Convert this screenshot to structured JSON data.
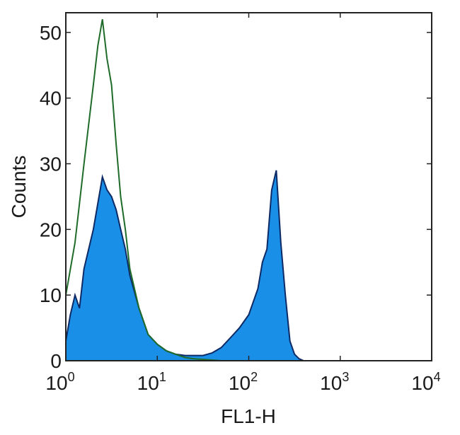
{
  "chart_data": {
    "type": "area",
    "title": "",
    "xlabel": "FL1-H",
    "ylabel": "Counts",
    "xscale": "log",
    "xlim": [
      1,
      10000
    ],
    "ylim": [
      0,
      53
    ],
    "grid": false,
    "x_ticks": [
      {
        "base": "10",
        "exp": "0"
      },
      {
        "base": "10",
        "exp": "1"
      },
      {
        "base": "10",
        "exp": "2"
      },
      {
        "base": "10",
        "exp": "3"
      },
      {
        "base": "10",
        "exp": "4"
      }
    ],
    "x_tick_values": [
      1,
      10,
      100,
      1000,
      10000
    ],
    "y_ticks": [
      "0",
      "10",
      "20",
      "30",
      "40",
      "50"
    ],
    "y_tick_values": [
      0,
      10,
      20,
      30,
      40,
      50
    ],
    "series": [
      {
        "style": "filled",
        "color": "#1a8fe8",
        "edge_color": "#0d2a66",
        "x": [
          1.0,
          1.12,
          1.26,
          1.41,
          1.58,
          2.0,
          2.24,
          2.51,
          2.82,
          3.16,
          3.55,
          3.98,
          4.47,
          5.01,
          6.31,
          7.94,
          10,
          12.6,
          15.8,
          20,
          25,
          31.6,
          39.8,
          50,
          63,
          79,
          100,
          126,
          141,
          158,
          178,
          200,
          224,
          251,
          282,
          316,
          355,
          398
        ],
        "y": [
          3,
          7,
          10,
          8,
          14,
          20,
          24,
          28,
          26,
          25,
          23,
          20,
          17,
          13,
          8,
          4,
          2.5,
          1.5,
          1,
          0.8,
          0.8,
          0.8,
          1.2,
          2,
          3.5,
          5,
          7,
          11,
          15,
          17,
          26,
          29,
          18,
          10,
          3,
          1,
          0.3,
          0
        ]
      },
      {
        "style": "line",
        "color": "#1f6b2a",
        "x": [
          1.0,
          1.26,
          1.58,
          2.0,
          2.24,
          2.51,
          2.82,
          3.16,
          3.55,
          3.98,
          4.47,
          5.01,
          6.31,
          7.94,
          10,
          12.6,
          15.8,
          20,
          25,
          31.6,
          50,
          100
        ],
        "y": [
          10,
          18,
          30,
          42,
          48,
          52,
          46,
          42,
          33,
          25,
          20,
          14,
          8,
          4,
          2.5,
          1.5,
          1,
          0.5,
          0.3,
          0.2,
          0,
          0
        ]
      }
    ]
  }
}
